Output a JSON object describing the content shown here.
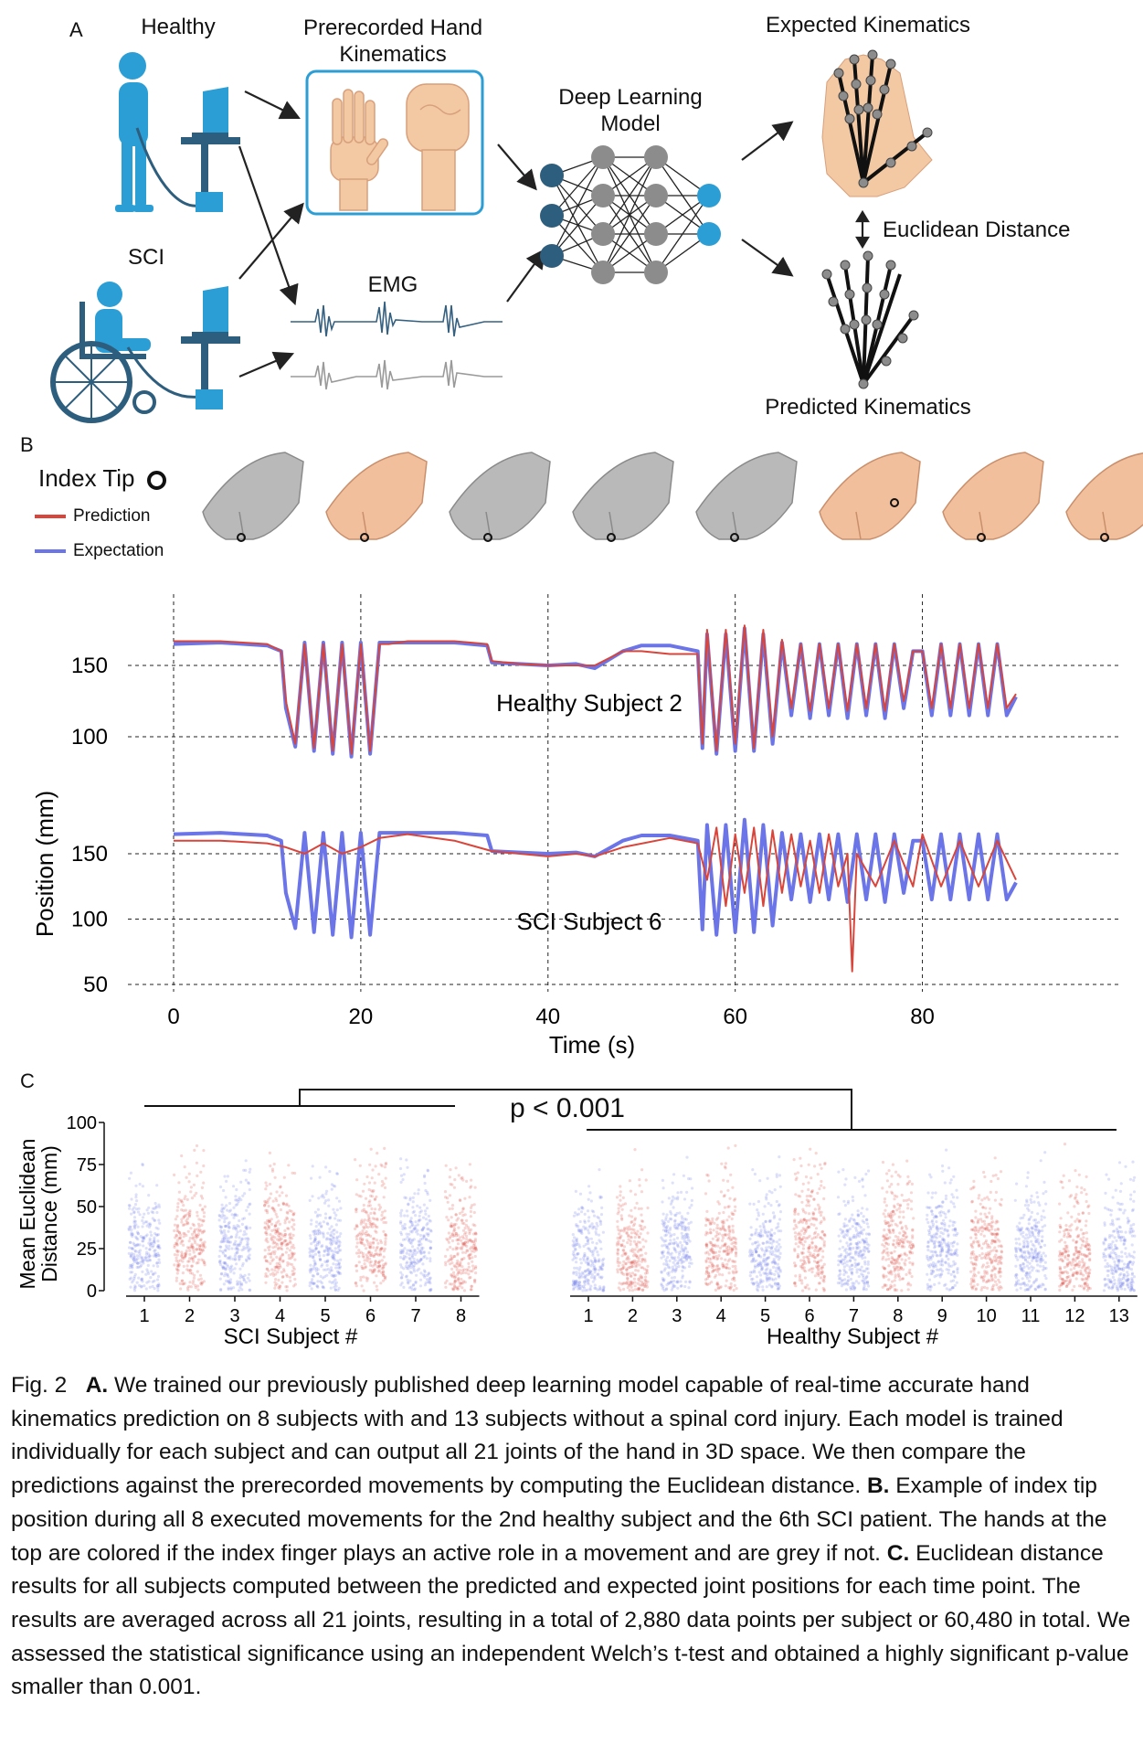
{
  "panel_a": {
    "letter": "A",
    "healthy": "Healthy",
    "sci": "SCI",
    "prerecorded": "Prerecorded Hand Kinematics",
    "emg": "EMG",
    "model": "Deep Learning Model",
    "expected": "Expected Kinematics",
    "euclidean": "Euclidean Distance",
    "predicted": "Predicted Kinematics",
    "colors": {
      "figure_blue": "#2c9ed6",
      "dark_blue": "#2e5e7e",
      "emg_blue": "#35607f",
      "emg_grey": "#9a9a9a",
      "skin": "#f3c9a3"
    }
  },
  "panel_b": {
    "letter": "B",
    "index_tip": "Index Tip",
    "legend": [
      {
        "label": "Prediction",
        "color": "#d9453a"
      },
      {
        "label": "Expectation",
        "color": "#6b75e8"
      }
    ],
    "hands_active": [
      false,
      true,
      false,
      false,
      false,
      true,
      true,
      true
    ],
    "chart_data": [
      {
        "type": "line",
        "title": "Healthy Subject 2",
        "xlabel": "Time (s)",
        "ylabel": "Position (mm)",
        "xlim": [
          0,
          90
        ],
        "ylim": [
          50,
          185
        ],
        "xticks": [
          0,
          20,
          40,
          60,
          80
        ],
        "yticks": [
          100,
          150
        ],
        "grid": true,
        "series": [
          {
            "name": "Prediction",
            "x": [
              0,
              5,
              10,
              11.5,
              12,
              13,
              14,
              15,
              16,
              17,
              18,
              19,
              20,
              21,
              22,
              23,
              25,
              30,
              33.5,
              34,
              37,
              40,
              43,
              45,
              48,
              50,
              53,
              56,
              56.5,
              57,
              58,
              59,
              60,
              61,
              62,
              63,
              64,
              65,
              66,
              67,
              68,
              69,
              70,
              71,
              72,
              73,
              74,
              75,
              76,
              77,
              78,
              79,
              80,
              81,
              82,
              83,
              84,
              85,
              86,
              87,
              88,
              89,
              90
            ],
            "y": [
              167,
              167,
              165,
              160,
              125,
              95,
              165,
              92,
              165,
              90,
              165,
              88,
              165,
              90,
              165,
              165,
              167,
              167,
              165,
              153,
              151,
              150,
              150,
              150,
              160,
              160,
              158,
              158,
              95,
              175,
              90,
              175,
              95,
              178,
              92,
              175,
              100,
              168,
              120,
              165,
              118,
              165,
              120,
              165,
              118,
              165,
              120,
              165,
              118,
              165,
              125,
              160,
              160,
              120,
              165,
              120,
              165,
              120,
              165,
              120,
              165,
              120,
              130
            ]
          },
          {
            "name": "Expectation",
            "x": [
              0,
              5,
              10,
              11.5,
              12,
              13,
              14,
              15,
              16,
              17,
              18,
              19,
              20,
              21,
              22,
              23,
              25,
              30,
              33.5,
              34,
              37,
              40,
              43,
              45,
              48,
              50,
              53,
              56,
              56.5,
              57,
              58,
              59,
              60,
              61,
              62,
              63,
              64,
              65,
              66,
              67,
              68,
              69,
              70,
              71,
              72,
              73,
              74,
              75,
              76,
              77,
              78,
              79,
              80,
              81,
              82,
              83,
              84,
              85,
              86,
              87,
              88,
              89,
              90
            ],
            "y": [
              165,
              166,
              164,
              160,
              120,
              93,
              166,
              90,
              166,
              88,
              166,
              86,
              166,
              88,
              166,
              166,
              166,
              166,
              164,
              152,
              151,
              150,
              151,
              148,
              160,
              164,
              164,
              160,
              92,
              172,
              88,
              172,
              90,
              176,
              90,
              172,
              95,
              166,
              115,
              165,
              113,
              165,
              115,
              165,
              113,
              165,
              115,
              165,
              113,
              165,
              120,
              160,
              160,
              115,
              165,
              115,
              165,
              115,
              165,
              115,
              165,
              115,
              128
            ]
          }
        ]
      },
      {
        "type": "line",
        "title": "SCI Subject 6",
        "xlabel": "Time (s)",
        "ylabel": "Position (mm)",
        "xlim": [
          0,
          90
        ],
        "ylim": [
          50,
          185
        ],
        "xticks": [
          0,
          20,
          40,
          60,
          80
        ],
        "yticks": [
          50,
          100,
          150
        ],
        "grid": true,
        "series": [
          {
            "name": "Prediction",
            "x": [
              0,
              5,
              10,
              12,
              14,
              16,
              18,
              20,
              22,
              25,
              30,
              34,
              37,
              40,
              43,
              45,
              48,
              53,
              56,
              57,
              58,
              59,
              60,
              61,
              62,
              63,
              64,
              65,
              66,
              67,
              68,
              69,
              70,
              71,
              72,
              72.5,
              73,
              75,
              77,
              79,
              80,
              82,
              84,
              86,
              88,
              90
            ],
            "y": [
              160,
              160,
              158,
              155,
              150,
              158,
              150,
              155,
              162,
              165,
              160,
              152,
              150,
              148,
              150,
              148,
              155,
              162,
              158,
              130,
              170,
              110,
              165,
              120,
              170,
              110,
              168,
              120,
              165,
              125,
              160,
              120,
              165,
              125,
              150,
              60,
              150,
              125,
              160,
              125,
              165,
              125,
              160,
              125,
              160,
              130
            ]
          },
          {
            "name": "Expectation",
            "x": [
              0,
              5,
              10,
              11.5,
              12,
              13,
              14,
              15,
              16,
              17,
              18,
              19,
              20,
              21,
              22,
              23,
              25,
              30,
              33.5,
              34,
              37,
              40,
              43,
              45,
              48,
              50,
              53,
              56,
              56.5,
              57,
              58,
              59,
              60,
              61,
              62,
              63,
              64,
              65,
              66,
              67,
              68,
              69,
              70,
              71,
              72,
              73,
              74,
              75,
              76,
              77,
              78,
              79,
              80,
              81,
              82,
              83,
              84,
              85,
              86,
              87,
              88,
              89,
              90
            ],
            "y": [
              165,
              166,
              164,
              160,
              120,
              93,
              166,
              90,
              166,
              88,
              166,
              86,
              166,
              88,
              166,
              166,
              166,
              166,
              164,
              152,
              151,
              150,
              151,
              148,
              160,
              164,
              164,
              160,
              92,
              172,
              88,
              172,
              90,
              176,
              90,
              172,
              95,
              166,
              115,
              165,
              113,
              165,
              115,
              165,
              113,
              165,
              115,
              165,
              113,
              165,
              120,
              160,
              160,
              115,
              165,
              115,
              165,
              115,
              165,
              115,
              165,
              115,
              128
            ]
          }
        ]
      }
    ]
  },
  "panel_c": {
    "letter": "C",
    "p_value": "p < 0.001",
    "chart_data": [
      {
        "type": "scatter",
        "xlabel": "SCI Subject #",
        "ylabel": "Mean Euclidean Distance (mm)",
        "categories": [
          "1",
          "2",
          "3",
          "4",
          "5",
          "6",
          "7",
          "8"
        ],
        "ylim": [
          0,
          100
        ],
        "yticks": [
          0,
          25,
          50,
          75,
          100
        ],
        "colors": [
          "#6b75e8",
          "#d9453a",
          "#6b75e8",
          "#d9453a",
          "#6b75e8",
          "#d9453a",
          "#6b75e8",
          "#d9453a"
        ],
        "median": [
          22,
          24,
          23,
          24,
          22,
          25,
          24,
          22
        ]
      },
      {
        "type": "scatter",
        "xlabel": "Healthy Subject #",
        "ylabel": "Mean Euclidean Distance (mm)",
        "categories": [
          "1",
          "2",
          "3",
          "4",
          "5",
          "6",
          "7",
          "8",
          "9",
          "10",
          "11",
          "12",
          "13"
        ],
        "ylim": [
          0,
          100
        ],
        "colors": [
          "#6b75e8",
          "#d9453a",
          "#6b75e8",
          "#d9453a",
          "#6b75e8",
          "#d9453a",
          "#6b75e8",
          "#d9453a",
          "#6b75e8",
          "#d9453a",
          "#6b75e8",
          "#d9453a",
          "#6b75e8"
        ],
        "median": [
          15,
          17,
          22,
          24,
          20,
          25,
          22,
          24,
          24,
          22,
          20,
          20,
          17
        ]
      }
    ]
  },
  "caption": {
    "fig": "Fig. 2",
    "a_label": "A.",
    "a_text": " We trained our previously published deep learning model capable of real-time accurate hand kinematics prediction on 8 subjects with and 13 subjects without a spinal cord injury. Each model is trained individually for each subject and can output all 21 joints of the hand in 3D space. We then compare the predictions against the prerecorded movements by computing the Euclidean distance. ",
    "b_label": "B.",
    "b_text": " Example of index tip position during all 8 executed movements for the 2nd healthy subject and the 6th SCI patient. The hands at the top are colored if the index finger plays an active role in a movement and are grey if not. ",
    "c_label": "C.",
    "c_text": " Euclidean distance results for all subjects computed between the predicted and expected joint positions for each time point. The results are averaged across all 21 joints, resulting in a total of 2,880 data points per subject or 60,480 in total. We assessed the statistical significance using an independent Welch’s t-test and obtained a highly significant p-value smaller than 0.001."
  }
}
